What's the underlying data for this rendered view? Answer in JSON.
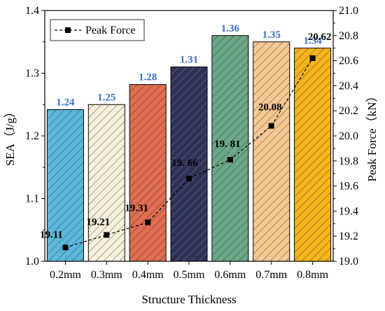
{
  "chart_data": {
    "type": "bar",
    "xlabel": "Structure Thickness",
    "ylabel": "SEA（J/g）",
    "y2label": "Peak Force（kN）",
    "categories": [
      "0.2mm",
      "0.3mm",
      "0.4mm",
      "0.5mm",
      "0.6mm",
      "0.7mm",
      "0.8mm"
    ],
    "ylim": [
      1.0,
      1.4
    ],
    "yticks": [
      "1.0",
      "1.1",
      "1.2",
      "1.3",
      "1.4"
    ],
    "y2lim": [
      19.0,
      21.0
    ],
    "y2ticks": [
      "19.0",
      "19.2",
      "19.4",
      "19.6",
      "19.8",
      "20.0",
      "20.2",
      "20.4",
      "20.6",
      "20.8",
      "21.0"
    ],
    "legend_position": "top-left",
    "grid": false,
    "series": [
      {
        "kind": "bar",
        "values": [
          1.242,
          1.25,
          1.282,
          1.31,
          1.36,
          1.35,
          1.34
        ],
        "labels": [
          "1.24",
          "1.25",
          "1.28",
          "1.31",
          "1.36",
          "1.35",
          "1.34"
        ],
        "colors": [
          "#5bb8dc",
          "#f6f1dc",
          "#e06e50",
          "#2f3157",
          "#6aa886",
          "#f6c892",
          "#f6b51c"
        ],
        "pattern": "diagonal-hatch"
      },
      {
        "kind": "line",
        "name": "Peak Force",
        "axis": "right",
        "values": [
          19.11,
          19.21,
          19.31,
          19.66,
          19.81,
          20.08,
          20.62
        ],
        "labels": [
          "19.11",
          "19.21",
          "19.31",
          "19. 66",
          "19. 81",
          "20.08",
          "20.62"
        ],
        "color": "#000000",
        "line_style": "dashed",
        "marker": "square"
      }
    ]
  }
}
